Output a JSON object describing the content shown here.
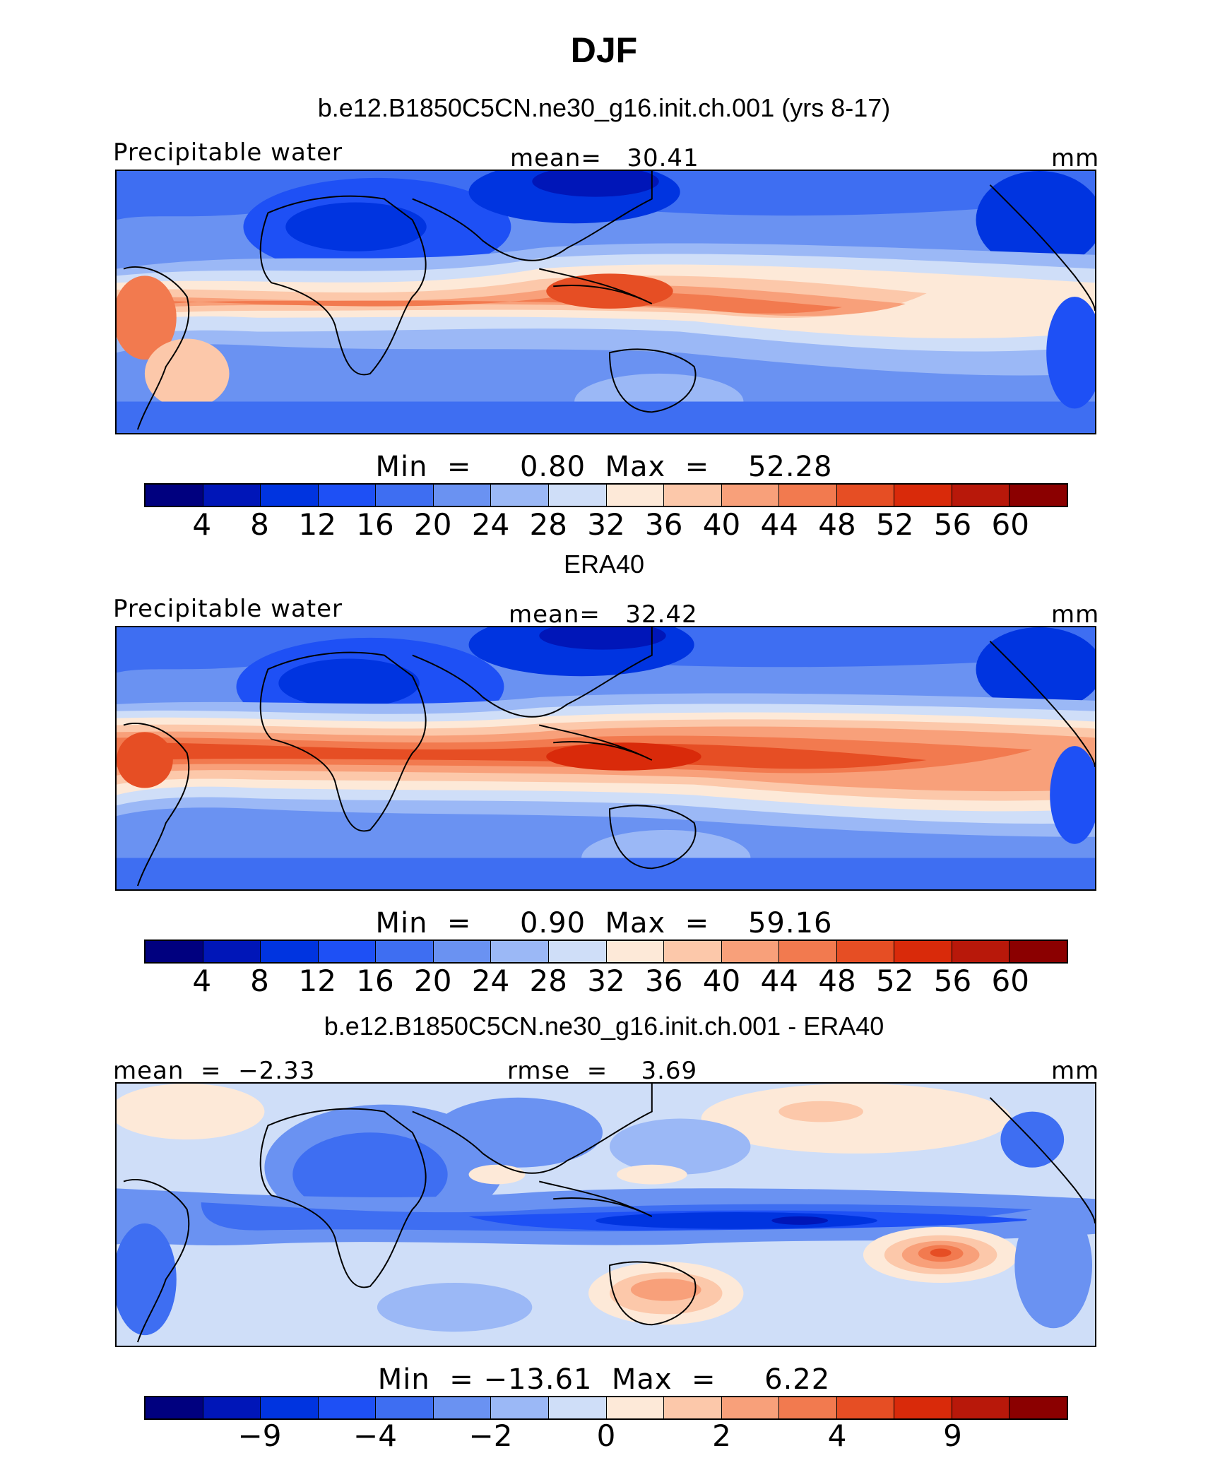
{
  "figure_title": "DJF",
  "colors": [
    "#00007f",
    "#0016b8",
    "#0034e0",
    "#1e50f5",
    "#3e6ef2",
    "#6a92f2",
    "#9bb8f6",
    "#cfdef8",
    "#fde9d8",
    "#fcc8aa",
    "#f8a07a",
    "#f27a4f",
    "#e64e24",
    "#d92a0a",
    "#b8180a",
    "#8b0000"
  ],
  "panels": [
    {
      "title": "b.e12.B1850C5CN.ne30_g16.init.ch.001 (yrs 8-17)",
      "left_label": "Precipitable water",
      "center_label": "mean=   30.41",
      "right_label": "mm",
      "min_label": "Min  =",
      "min_value": "0.80",
      "max_label": "Max  =",
      "max_value": "52.28",
      "colorbar_ticks": [
        "4",
        "8",
        "12",
        "16",
        "20",
        "24",
        "28",
        "32",
        "36",
        "40",
        "44",
        "48",
        "52",
        "56",
        "60"
      ]
    },
    {
      "title": "ERA40",
      "left_label": "Precipitable water",
      "center_label": "mean=   32.42",
      "right_label": "mm",
      "min_label": "Min  =",
      "min_value": "0.90",
      "max_label": "Max  =",
      "max_value": "59.16",
      "colorbar_ticks": [
        "4",
        "8",
        "12",
        "16",
        "20",
        "24",
        "28",
        "32",
        "36",
        "40",
        "44",
        "48",
        "52",
        "56",
        "60"
      ]
    },
    {
      "title": "b.e12.B1850C5CN.ne30_g16.init.ch.001 - ERA40",
      "left_label": "mean  =  −2.33",
      "center_label": "rmse  =    3.69",
      "right_label": "mm",
      "min_label": "Min  =",
      "min_value": "−13.61",
      "max_label": "Max  =",
      "max_value": "6.22",
      "colorbar_ticks": [
        "−9",
        "−4",
        "−2",
        "0",
        "2",
        "4",
        "9"
      ]
    }
  ]
}
